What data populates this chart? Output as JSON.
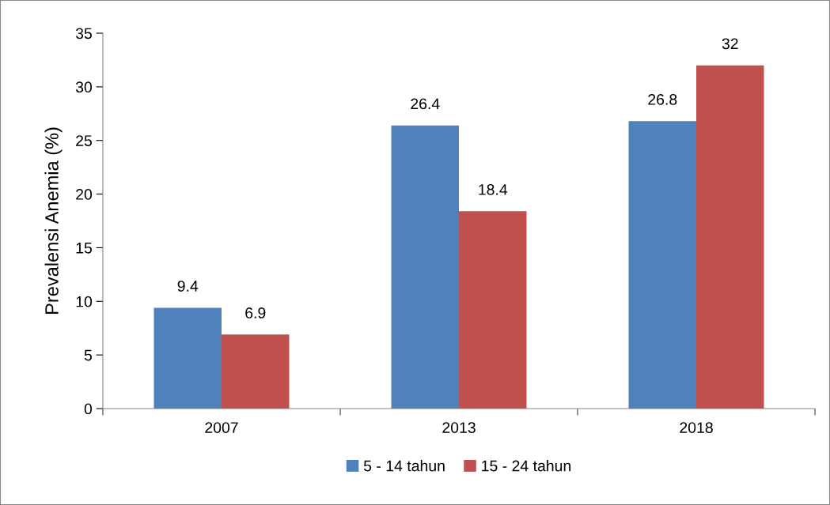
{
  "chart_data": {
    "type": "bar",
    "ylabel": "Prevalensi Anemia (%)",
    "categories": [
      "2007",
      "2013",
      "2018"
    ],
    "series": [
      {
        "name": "5 - 14 tahun",
        "color": "#4f81bd",
        "values": [
          9.4,
          26.4,
          26.8
        ]
      },
      {
        "name": "15 - 24 tahun",
        "color": "#c0504d",
        "values": [
          6.9,
          18.4,
          32
        ]
      }
    ],
    "ylim": [
      0,
      35
    ],
    "yticks": [
      0,
      5,
      10,
      15,
      20,
      25,
      30,
      35
    ],
    "grid": false,
    "legend": "bottom",
    "data_labels": true
  }
}
